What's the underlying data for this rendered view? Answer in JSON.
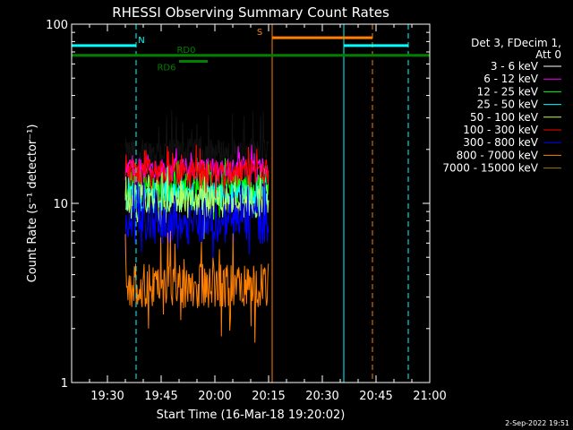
{
  "chart_data": {
    "type": "line",
    "title": "RHESSI Observing Summary Count Rates",
    "xlabel": "Start Time (16-Mar-18 19:20:02)",
    "ylabel": "Count Rate (s⁻¹ detector⁻¹)",
    "footer": "2-Sep-2022 19:51",
    "x_unit": "minutes after 19:20",
    "xlim": [
      0,
      100
    ],
    "ylim": [
      1,
      100
    ],
    "y_scale": "log",
    "x_ticks": [
      {
        "x": 10,
        "label": "19:30"
      },
      {
        "x": 25,
        "label": "19:45"
      },
      {
        "x": 40,
        "label": "20:00"
      },
      {
        "x": 55,
        "label": "20:15"
      },
      {
        "x": 70,
        "label": "20:30"
      },
      {
        "x": 85,
        "label": "20:45"
      },
      {
        "x": 100,
        "label": "21:00"
      }
    ],
    "y_ticks": [
      {
        "y": 1,
        "label": "1"
      },
      {
        "y": 10,
        "label": "10"
      },
      {
        "y": 100,
        "label": "100"
      }
    ],
    "legend_header": [
      "Det 3, FDecim 1,",
      "Att 0"
    ],
    "legend_position": "right",
    "series": [
      {
        "name": "3 - 6 keV",
        "color": "#000000",
        "legend_color": "#ffffff",
        "x_range": [
          15,
          55
        ],
        "level": 19.5,
        "jitter": 0.09,
        "spike": 1.45
      },
      {
        "name": "6 - 12 keV",
        "color": "#ff00ff",
        "x_range": [
          15,
          55
        ],
        "level": 15.5,
        "jitter": 0.08,
        "spike": 1.2
      },
      {
        "name": "12 - 25 keV",
        "color": "#00ff00",
        "x_range": [
          15,
          55
        ],
        "level": 12.5,
        "jitter": 0.1,
        "spike": 1.25
      },
      {
        "name": "25 - 50 keV",
        "color": "#00ffff",
        "x_range": [
          15,
          55
        ],
        "level": 11.0,
        "jitter": 0.1,
        "spike": 1.25
      },
      {
        "name": "50 - 100 keV",
        "color": "#b4ff64",
        "x_range": [
          15,
          55
        ],
        "level": 10.5,
        "jitter": 0.11,
        "spike": 1.3
      },
      {
        "name": "100 - 300 keV",
        "color": "#ff0000",
        "x_range": [
          15,
          55
        ],
        "level": 15.0,
        "jitter": 0.09,
        "spike": 1.22
      },
      {
        "name": "300 - 800 keV",
        "color": "#0000ff",
        "x_range": [
          15,
          55
        ],
        "level": 8.0,
        "jitter": 0.13,
        "spike": 1.35
      },
      {
        "name": "800 - 7000 keV",
        "color": "#ff8000",
        "x_range": [
          15,
          55
        ],
        "level": 3.6,
        "jitter": 0.14,
        "spike": 1.6
      },
      {
        "name": "7000 - 15000 keV",
        "color": "#a07800",
        "x_range": [
          15,
          55
        ],
        "level": 1.0,
        "jitter": 0.0,
        "spike": 1.0
      }
    ],
    "flag_bars": [
      {
        "label": "N",
        "color": "#00ffff",
        "y": 76,
        "segments": [
          [
            0,
            18
          ],
          [
            76,
            94
          ]
        ],
        "label_x": 19.5,
        "label_pos": "above"
      },
      {
        "label": "RD0",
        "color": "#008000",
        "y": 67,
        "segments": [
          [
            0,
            100
          ]
        ],
        "label_x": 32,
        "label_pos": "above"
      },
      {
        "label": "RD6",
        "color": "#008000",
        "y": 62,
        "segments": [
          [
            30,
            38
          ]
        ],
        "label_x": 26.5,
        "label_pos": "below"
      },
      {
        "label": "S",
        "color": "#ff8000",
        "y": 84,
        "segments": [
          [
            56,
            84
          ]
        ],
        "label_x": 52.5,
        "label_pos": "above"
      }
    ],
    "vertical_markers": [
      {
        "x": 0,
        "color": "#00ffff",
        "style": "solid"
      },
      {
        "x": 18,
        "color": "#00ffff",
        "style": "dashed"
      },
      {
        "x": 56,
        "color": "#ff8000",
        "style": "solid"
      },
      {
        "x": 76,
        "color": "#00ffff",
        "style": "solid"
      },
      {
        "x": 84,
        "color": "#ff8000",
        "style": "dashed"
      },
      {
        "x": 94,
        "color": "#00ffff",
        "style": "dashed"
      }
    ]
  }
}
